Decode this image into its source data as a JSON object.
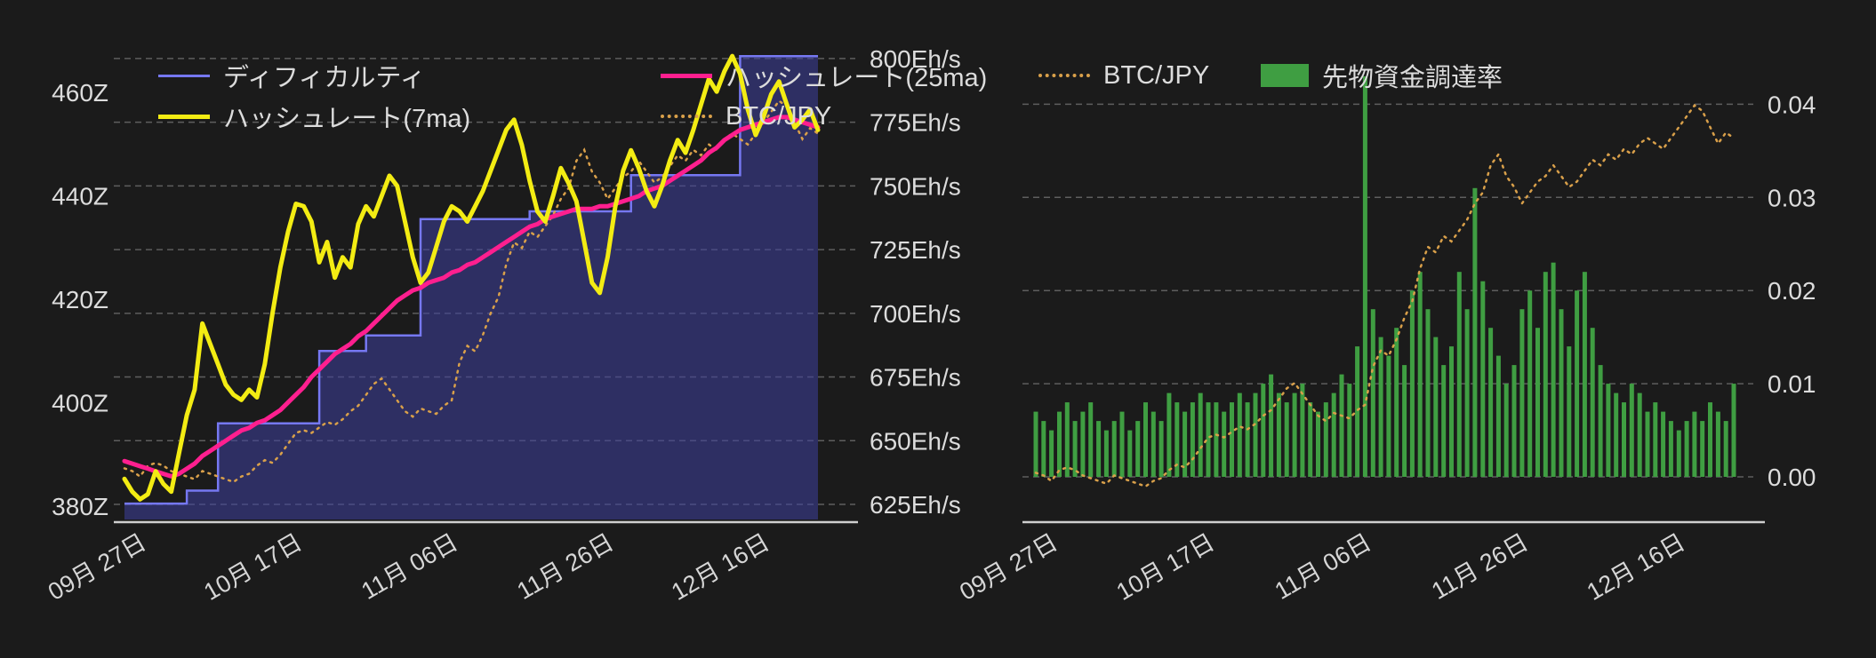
{
  "page": {
    "background": "#1b1b1b",
    "text_color": "#dcdcdc"
  },
  "chart_data": [
    {
      "id": "difficulty-hashrate-chart",
      "type": "line",
      "legend_position": "top-left-two-rows",
      "grid": true,
      "x_tick_labels": [
        "09月 27日",
        "10月 17日",
        "11月 06日",
        "11月 26日",
        "12月 16日"
      ],
      "x_tick_indices": [
        3,
        23,
        43,
        63,
        83
      ],
      "left_axis": {
        "ticks": [
          "380Z",
          "400Z",
          "420Z",
          "440Z",
          "460Z"
        ],
        "values": [
          380,
          400,
          420,
          440,
          460
        ],
        "range": [
          378.5,
          468
        ]
      },
      "right_axis": {
        "ticks": [
          "625Eh/s",
          "650Eh/s",
          "675Eh/s",
          "700Eh/s",
          "725Eh/s",
          "750Eh/s",
          "775Eh/s",
          "800Eh/s"
        ],
        "values": [
          625,
          650,
          675,
          700,
          725,
          750,
          775,
          800
        ],
        "range": [
          623,
          802
        ]
      },
      "series": [
        {
          "name": "ディフィカルティ",
          "kind": "step-area",
          "axis": "left",
          "unit": "Z",
          "color": "#7678f2",
          "fill": "rgba(62,64,158,0.55)",
          "values": [
            380.5,
            380.5,
            380.5,
            380.5,
            380.5,
            380.5,
            380.5,
            380.5,
            383,
            383,
            383,
            383,
            396,
            396,
            396,
            396,
            396,
            396,
            396,
            396,
            396,
            396,
            396,
            396,
            396,
            410,
            410,
            410,
            410,
            410,
            410,
            413,
            413,
            413,
            413,
            413,
            413,
            413,
            435.5,
            435.5,
            435.5,
            435.5,
            435.5,
            435.5,
            435.5,
            435.5,
            435.5,
            435.5,
            435.5,
            435.5,
            435.5,
            435.5,
            437,
            437,
            437,
            437,
            437,
            437,
            437,
            437,
            437,
            437,
            437,
            437,
            437,
            444,
            444,
            444,
            444,
            444,
            444,
            444,
            444,
            444,
            444,
            444,
            444,
            444,
            444,
            467,
            467,
            467,
            467,
            467,
            467,
            467,
            467,
            467,
            467,
            467
          ]
        },
        {
          "name": "ハッシュレート(7ma)",
          "kind": "line",
          "axis": "right",
          "unit": "Eh/s",
          "color": "#f3ec13",
          "values": [
            635,
            630,
            627,
            629,
            638,
            633,
            630,
            645,
            660,
            670,
            696,
            688,
            680,
            672,
            668,
            666,
            670,
            667,
            680,
            700,
            718,
            732,
            743,
            742,
            736,
            720,
            728,
            714,
            722,
            718,
            735,
            742,
            738,
            746,
            754,
            750,
            736,
            722,
            712,
            716,
            726,
            736,
            742,
            740,
            736,
            742,
            748,
            756,
            764,
            772,
            776,
            766,
            752,
            740,
            736,
            746,
            757,
            751,
            744,
            728,
            712,
            708,
            722,
            742,
            756,
            764,
            757,
            748,
            742,
            750,
            760,
            768,
            763,
            772,
            782,
            792,
            787,
            795,
            801,
            794,
            780,
            770,
            777,
            786,
            791,
            782,
            773,
            776,
            780,
            772
          ]
        },
        {
          "name": "ハッシュレート(25ma)",
          "kind": "line",
          "axis": "right",
          "unit": "Eh/s",
          "color": "#ff1f8f",
          "values": [
            642,
            641,
            640,
            639,
            638,
            637,
            636,
            637,
            639,
            641,
            644,
            646,
            648,
            650,
            652,
            654,
            655,
            657,
            658,
            660,
            662,
            665,
            668,
            671,
            675,
            678,
            681,
            684,
            686,
            688,
            691,
            693,
            696,
            699,
            702,
            705,
            707,
            709,
            710,
            712,
            713,
            714,
            716,
            717,
            719,
            720,
            722,
            724,
            726,
            728,
            730,
            732,
            734,
            735,
            737,
            738,
            739,
            740,
            741,
            741,
            741,
            742,
            742,
            743,
            744,
            745,
            746,
            748,
            749,
            750,
            752,
            754,
            756,
            758,
            760,
            763,
            765,
            768,
            770,
            772,
            773,
            774,
            775,
            776,
            777,
            777,
            776,
            775,
            774,
            773
          ]
        },
        {
          "name": "BTC/JPY",
          "kind": "dotted-line",
          "axis": "hidden",
          "unit": "million JPY (axis not shown)",
          "color": "#d9a04a",
          "values": [
            9.45,
            9.4,
            9.3,
            9.5,
            9.55,
            9.5,
            9.4,
            9.35,
            9.3,
            9.25,
            9.4,
            9.35,
            9.3,
            9.25,
            9.2,
            9.3,
            9.35,
            9.5,
            9.6,
            9.55,
            9.7,
            9.9,
            10.1,
            10.15,
            10.1,
            10.2,
            10.3,
            10.25,
            10.35,
            10.5,
            10.6,
            10.8,
            11.0,
            11.1,
            10.9,
            10.7,
            10.5,
            10.4,
            10.55,
            10.5,
            10.45,
            10.6,
            10.7,
            11.4,
            11.7,
            11.6,
            11.9,
            12.3,
            12.6,
            13.2,
            13.6,
            13.5,
            13.8,
            13.7,
            13.9,
            14.1,
            14.4,
            14.6,
            15.1,
            15.3,
            14.9,
            14.7,
            14.4,
            14.6,
            14.8,
            14.9,
            15.1,
            14.9,
            14.7,
            14.8,
            15.0,
            15.2,
            15.1,
            15.3,
            15.2,
            15.4,
            15.3,
            15.5,
            15.6,
            15.5,
            15.4,
            15.6,
            15.8,
            16.0,
            16.2,
            16.1,
            15.8,
            15.5,
            15.7,
            15.6
          ]
        }
      ]
    },
    {
      "id": "funding-rate-chart",
      "type": "bar",
      "legend_position": "top-left-one-row",
      "grid": true,
      "x_tick_labels": [
        "09月 27日",
        "10月 17日",
        "11月 06日",
        "11月 26日",
        "12月 16日"
      ],
      "x_tick_indices": [
        3,
        23,
        43,
        63,
        83
      ],
      "right_axis": {
        "ticks": [
          "0.00",
          "0.01",
          "0.02",
          "0.03",
          "0.04"
        ],
        "values": [
          0,
          0.01,
          0.02,
          0.03,
          0.04
        ],
        "range": [
          0,
          0.044
        ]
      },
      "series": [
        {
          "name": "BTC/JPY",
          "kind": "dotted-line",
          "axis": "hidden",
          "unit": "million JPY (axis not shown)",
          "color": "#d9a04a",
          "values": [
            9.45,
            9.4,
            9.3,
            9.5,
            9.55,
            9.5,
            9.4,
            9.35,
            9.3,
            9.25,
            9.4,
            9.35,
            9.3,
            9.25,
            9.2,
            9.3,
            9.35,
            9.5,
            9.6,
            9.55,
            9.7,
            9.9,
            10.1,
            10.15,
            10.1,
            10.2,
            10.3,
            10.25,
            10.35,
            10.5,
            10.6,
            10.8,
            11.0,
            11.1,
            10.9,
            10.7,
            10.5,
            10.4,
            10.55,
            10.5,
            10.45,
            10.6,
            10.7,
            11.4,
            11.7,
            11.6,
            11.9,
            12.3,
            12.6,
            13.2,
            13.6,
            13.5,
            13.8,
            13.7,
            13.9,
            14.1,
            14.4,
            14.6,
            15.1,
            15.3,
            14.9,
            14.7,
            14.4,
            14.6,
            14.8,
            14.9,
            15.1,
            14.9,
            14.7,
            14.8,
            15.0,
            15.2,
            15.1,
            15.3,
            15.2,
            15.4,
            15.3,
            15.5,
            15.6,
            15.5,
            15.4,
            15.6,
            15.8,
            16.0,
            16.2,
            16.1,
            15.8,
            15.5,
            15.7,
            15.6
          ]
        },
        {
          "name": "先物資金調達率",
          "kind": "bar",
          "axis": "right",
          "color": "#3f9e42",
          "values": [
            0.007,
            0.006,
            0.005,
            0.007,
            0.008,
            0.006,
            0.007,
            0.008,
            0.006,
            0.005,
            0.006,
            0.007,
            0.005,
            0.006,
            0.008,
            0.007,
            0.006,
            0.009,
            0.008,
            0.007,
            0.008,
            0.009,
            0.008,
            0.008,
            0.007,
            0.008,
            0.009,
            0.008,
            0.009,
            0.01,
            0.011,
            0.009,
            0.008,
            0.009,
            0.01,
            0.008,
            0.007,
            0.008,
            0.009,
            0.011,
            0.01,
            0.014,
            0.043,
            0.018,
            0.015,
            0.013,
            0.016,
            0.012,
            0.02,
            0.022,
            0.018,
            0.015,
            0.012,
            0.014,
            0.022,
            0.018,
            0.031,
            0.021,
            0.016,
            0.013,
            0.01,
            0.012,
            0.018,
            0.02,
            0.016,
            0.022,
            0.023,
            0.018,
            0.014,
            0.02,
            0.022,
            0.016,
            0.012,
            0.01,
            0.009,
            0.008,
            0.01,
            0.009,
            0.007,
            0.008,
            0.007,
            0.006,
            0.005,
            0.006,
            0.007,
            0.006,
            0.008,
            0.007,
            0.006,
            0.01
          ]
        }
      ]
    }
  ]
}
